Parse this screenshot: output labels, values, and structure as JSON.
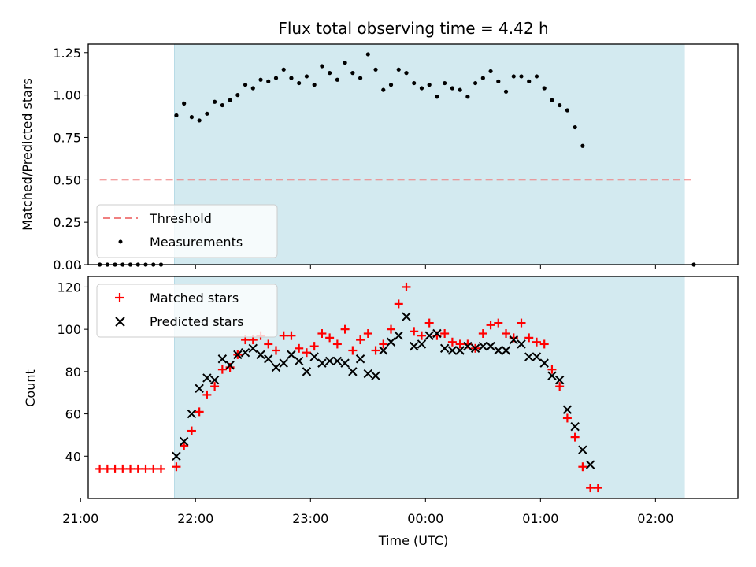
{
  "chart_data": [
    {
      "type": "scatter",
      "title": "Flux total observing time = 4.42 h",
      "xlabel": "",
      "ylabel": "Matched/Predicted stars",
      "xlim": [
        "21:04",
        "02:43"
      ],
      "ylim": [
        0,
        1.3
      ],
      "yticks": [
        "0.00",
        "0.25",
        "0.50",
        "0.75",
        "1.00",
        "1.25"
      ],
      "grid": false,
      "legend_position": "lower-left",
      "shaded_region": {
        "start": "21:49",
        "end": "02:15",
        "color": "#d3eaf0"
      },
      "threshold": {
        "name": "Threshold",
        "value": 0.5,
        "x_start": "21:10",
        "x_end": "02:20",
        "color": "#f08080"
      },
      "series": [
        {
          "name": "Measurements",
          "marker": "dot",
          "color": "#000000",
          "points": [
            [
              "21:10",
              0.0
            ],
            [
              "21:14",
              0.0
            ],
            [
              "21:18",
              0.0
            ],
            [
              "21:22",
              0.0
            ],
            [
              "21:26",
              0.0
            ],
            [
              "21:30",
              0.0
            ],
            [
              "21:34",
              0.0
            ],
            [
              "21:38",
              0.0
            ],
            [
              "21:42",
              0.0
            ],
            [
              "21:50",
              0.88
            ],
            [
              "21:54",
              0.95
            ],
            [
              "21:58",
              0.87
            ],
            [
              "22:02",
              0.85
            ],
            [
              "22:06",
              0.89
            ],
            [
              "22:10",
              0.96
            ],
            [
              "22:14",
              0.94
            ],
            [
              "22:18",
              0.97
            ],
            [
              "22:22",
              1.0
            ],
            [
              "22:26",
              1.06
            ],
            [
              "22:30",
              1.04
            ],
            [
              "22:34",
              1.09
            ],
            [
              "22:38",
              1.08
            ],
            [
              "22:42",
              1.1
            ],
            [
              "22:46",
              1.15
            ],
            [
              "22:50",
              1.1
            ],
            [
              "22:54",
              1.07
            ],
            [
              "22:58",
              1.11
            ],
            [
              "23:02",
              1.06
            ],
            [
              "23:06",
              1.17
            ],
            [
              "23:10",
              1.13
            ],
            [
              "23:14",
              1.09
            ],
            [
              "23:18",
              1.19
            ],
            [
              "23:22",
              1.13
            ],
            [
              "23:26",
              1.1
            ],
            [
              "23:30",
              1.24
            ],
            [
              "23:34",
              1.15
            ],
            [
              "23:38",
              1.03
            ],
            [
              "23:42",
              1.06
            ],
            [
              "23:46",
              1.15
            ],
            [
              "23:50",
              1.13
            ],
            [
              "23:54",
              1.07
            ],
            [
              "23:58",
              1.04
            ],
            [
              "00:02",
              1.06
            ],
            [
              "00:06",
              0.99
            ],
            [
              "00:10",
              1.07
            ],
            [
              "00:14",
              1.04
            ],
            [
              "00:18",
              1.03
            ],
            [
              "00:22",
              0.99
            ],
            [
              "00:26",
              1.07
            ],
            [
              "00:30",
              1.1
            ],
            [
              "00:34",
              1.14
            ],
            [
              "00:38",
              1.08
            ],
            [
              "00:42",
              1.02
            ],
            [
              "00:46",
              1.11
            ],
            [
              "00:50",
              1.11
            ],
            [
              "00:54",
              1.08
            ],
            [
              "00:58",
              1.11
            ],
            [
              "01:02",
              1.04
            ],
            [
              "01:06",
              0.97
            ],
            [
              "01:10",
              0.94
            ],
            [
              "01:14",
              0.91
            ],
            [
              "01:18",
              0.81
            ],
            [
              "01:22",
              0.7
            ],
            [
              "02:20",
              0.0
            ]
          ]
        }
      ]
    },
    {
      "type": "scatter",
      "title": "",
      "xlabel": "Time (UTC)",
      "ylabel": "Count",
      "xlim": [
        "21:04",
        "02:43"
      ],
      "ylim": [
        20,
        125
      ],
      "yticks": [
        "40",
        "60",
        "80",
        "100",
        "120"
      ],
      "xticks": [
        "21:00",
        "22:00",
        "23:00",
        "00:00",
        "01:00",
        "02:00"
      ],
      "grid": false,
      "legend_position": "upper-left",
      "shaded_region": {
        "start": "21:49",
        "end": "02:15",
        "color": "#d3eaf0"
      },
      "series": [
        {
          "name": "Matched stars",
          "marker": "plus",
          "color": "#ff0000",
          "points": [
            [
              "21:10",
              34
            ],
            [
              "21:14",
              34
            ],
            [
              "21:18",
              34
            ],
            [
              "21:22",
              34
            ],
            [
              "21:26",
              34
            ],
            [
              "21:30",
              34
            ],
            [
              "21:34",
              34
            ],
            [
              "21:38",
              34
            ],
            [
              "21:42",
              34
            ],
            [
              "21:50",
              35
            ],
            [
              "21:54",
              45
            ],
            [
              "21:58",
              52
            ],
            [
              "22:02",
              61
            ],
            [
              "22:06",
              69
            ],
            [
              "22:10",
              73
            ],
            [
              "22:14",
              81
            ],
            [
              "22:18",
              82
            ],
            [
              "22:22",
              88
            ],
            [
              "22:26",
              95
            ],
            [
              "22:30",
              95
            ],
            [
              "22:34",
              97
            ],
            [
              "22:38",
              93
            ],
            [
              "22:42",
              90
            ],
            [
              "22:46",
              97
            ],
            [
              "22:50",
              97
            ],
            [
              "22:54",
              91
            ],
            [
              "22:58",
              89
            ],
            [
              "23:02",
              92
            ],
            [
              "23:06",
              98
            ],
            [
              "23:10",
              96
            ],
            [
              "23:14",
              93
            ],
            [
              "23:18",
              100
            ],
            [
              "23:22",
              90
            ],
            [
              "23:26",
              95
            ],
            [
              "23:30",
              98
            ],
            [
              "23:34",
              90
            ],
            [
              "23:38",
              93
            ],
            [
              "23:42",
              100
            ],
            [
              "23:46",
              112
            ],
            [
              "23:50",
              120
            ],
            [
              "23:54",
              99
            ],
            [
              "23:58",
              97
            ],
            [
              "00:02",
              103
            ],
            [
              "00:06",
              97
            ],
            [
              "00:10",
              98
            ],
            [
              "00:14",
              94
            ],
            [
              "00:18",
              93
            ],
            [
              "00:22",
              93
            ],
            [
              "00:26",
              91
            ],
            [
              "00:30",
              98
            ],
            [
              "00:34",
              102
            ],
            [
              "00:38",
              103
            ],
            [
              "00:42",
              98
            ],
            [
              "00:46",
              96
            ],
            [
              "00:50",
              103
            ],
            [
              "00:54",
              96
            ],
            [
              "00:58",
              94
            ],
            [
              "01:02",
              93
            ],
            [
              "01:06",
              81
            ],
            [
              "01:10",
              73
            ],
            [
              "01:14",
              58
            ],
            [
              "01:18",
              49
            ],
            [
              "01:22",
              35
            ],
            [
              "01:26",
              25
            ],
            [
              "01:30",
              25
            ]
          ]
        },
        {
          "name": "Predicted stars",
          "marker": "x",
          "color": "#000000",
          "points": [
            [
              "21:50",
              40
            ],
            [
              "21:54",
              47
            ],
            [
              "21:58",
              60
            ],
            [
              "22:02",
              72
            ],
            [
              "22:06",
              77
            ],
            [
              "22:10",
              76
            ],
            [
              "22:14",
              86
            ],
            [
              "22:18",
              83
            ],
            [
              "22:22",
              88
            ],
            [
              "22:26",
              89
            ],
            [
              "22:30",
              91
            ],
            [
              "22:34",
              88
            ],
            [
              "22:38",
              86
            ],
            [
              "22:42",
              82
            ],
            [
              "22:46",
              84
            ],
            [
              "22:50",
              88
            ],
            [
              "22:54",
              85
            ],
            [
              "22:58",
              80
            ],
            [
              "23:02",
              87
            ],
            [
              "23:06",
              84
            ],
            [
              "23:10",
              85
            ],
            [
              "23:14",
              85
            ],
            [
              "23:18",
              84
            ],
            [
              "23:22",
              80
            ],
            [
              "23:26",
              86
            ],
            [
              "23:30",
              79
            ],
            [
              "23:34",
              78
            ],
            [
              "23:38",
              90
            ],
            [
              "23:42",
              94
            ],
            [
              "23:46",
              97
            ],
            [
              "23:50",
              106
            ],
            [
              "23:54",
              92
            ],
            [
              "23:58",
              93
            ],
            [
              "00:02",
              97
            ],
            [
              "00:06",
              98
            ],
            [
              "00:10",
              91
            ],
            [
              "00:14",
              90
            ],
            [
              "00:18",
              90
            ],
            [
              "00:22",
              92
            ],
            [
              "00:26",
              91
            ],
            [
              "00:30",
              92
            ],
            [
              "00:34",
              92
            ],
            [
              "00:38",
              90
            ],
            [
              "00:42",
              90
            ],
            [
              "00:46",
              95
            ],
            [
              "00:50",
              93
            ],
            [
              "00:54",
              87
            ],
            [
              "00:58",
              87
            ],
            [
              "01:02",
              84
            ],
            [
              "01:06",
              78
            ],
            [
              "01:10",
              76
            ],
            [
              "01:14",
              62
            ],
            [
              "01:18",
              54
            ],
            [
              "01:22",
              43
            ],
            [
              "01:26",
              36
            ]
          ]
        }
      ]
    }
  ]
}
